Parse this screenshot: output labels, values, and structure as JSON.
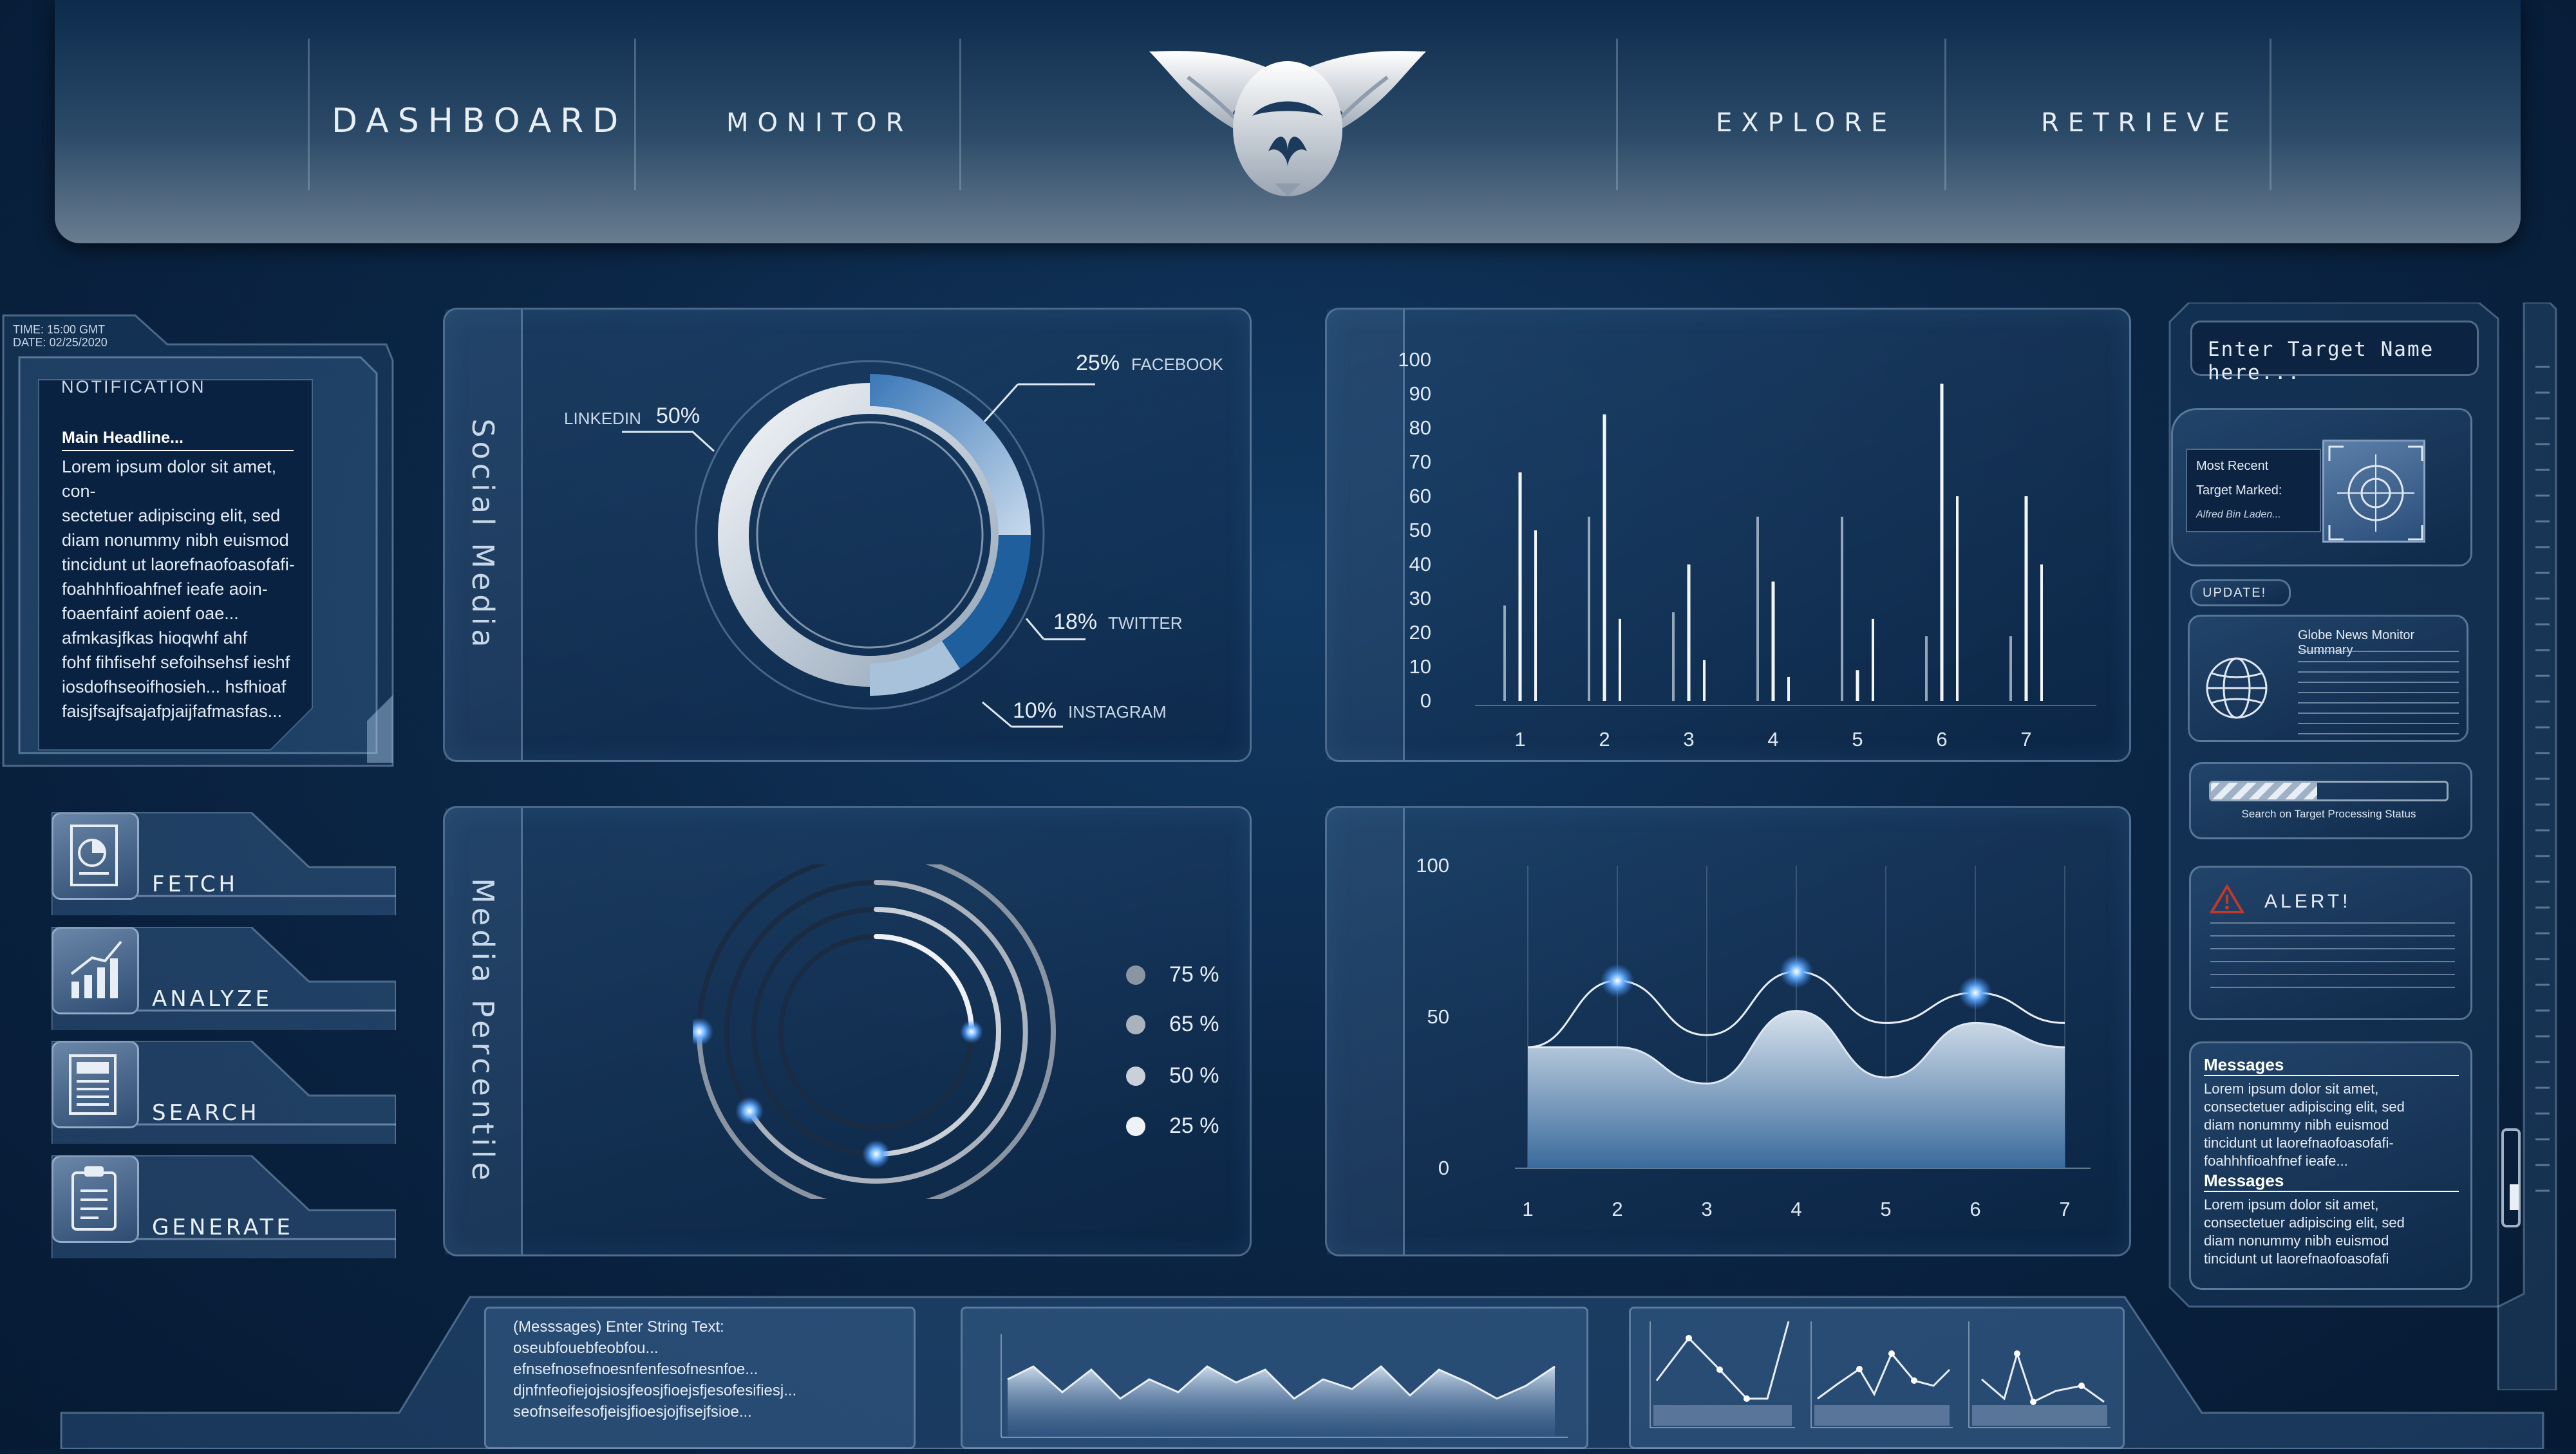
{
  "nav": {
    "items": [
      "DASHBOARD",
      "MONITOR",
      "EXPLORE",
      "RETRIEVE"
    ]
  },
  "sidebar": {
    "time": "TIME: 15:00 GMT",
    "date": "DATE: 02/25/2020",
    "notification_title": "NOTIFICATION",
    "headline": "Main Headline...",
    "body_lines": [
      "Lorem ipsum dolor sit amet, con-",
      "sectetuer adipiscing elit, sed",
      "diam nonummy nibh euismod",
      "tincidunt ut laorefnaofoasofafi-",
      "foahhhfioahfnef ieafe aoin-",
      "foaenfainf aoienf oae...",
      "afmkasjfkas hioqwhf ahf",
      " fohf fihfisehf sefoihsehsf ieshf",
      "iosdofhseoifhosieh... hsfhioaf",
      "faisjfsajfsajafpjaijfafmasfas..."
    ],
    "actions": [
      "FETCH",
      "ANALYZE",
      "SEARCH",
      "GENERATE"
    ],
    "action_icons": [
      "document-pie-icon",
      "bar-growth-icon",
      "newspaper-icon",
      "clipboard-icon"
    ]
  },
  "social_media": {
    "title": "Social Media",
    "segments": [
      {
        "pct": "25%",
        "name": "FACEBOOK"
      },
      {
        "pct": "18%",
        "name": "TWITTER"
      },
      {
        "pct": "10%",
        "name": "INSTAGRAM"
      },
      {
        "pct": "50%",
        "name": "LINKEDIN"
      }
    ]
  },
  "media_percentile": {
    "title": "Media Percentile",
    "legend": [
      "75 %",
      "65 %",
      "50 %",
      "25 %"
    ]
  },
  "chart_data": [
    {
      "type": "bar",
      "ylim": [
        0,
        100
      ],
      "yticks": [
        "0",
        "10",
        "20",
        "30",
        "40",
        "50",
        "60",
        "70",
        "80",
        "90",
        "100"
      ],
      "categories": [
        "1",
        "2",
        "3",
        "4",
        "5",
        "6",
        "7"
      ],
      "series": [
        {
          "values": [
            28,
            54,
            26,
            54,
            54,
            19,
            19
          ]
        },
        {
          "values": [
            67,
            84,
            40,
            35,
            9,
            93,
            60
          ]
        },
        {
          "values": [
            50,
            24,
            12,
            7,
            24,
            60,
            40
          ]
        }
      ]
    },
    {
      "type": "area",
      "ylim": [
        0,
        100
      ],
      "yticks": [
        "0",
        "50",
        "100"
      ],
      "x": [
        "1",
        "2",
        "3",
        "4",
        "5",
        "6",
        "7"
      ],
      "series": [
        {
          "values": [
            40,
            40,
            28,
            52,
            30,
            48,
            40
          ]
        },
        {
          "values": [
            40,
            62,
            44,
            65,
            48,
            58,
            48
          ]
        }
      ]
    }
  ],
  "right": {
    "search_placeholder": "Enter Target Name here...",
    "recent_line1": "Most Recent",
    "recent_line2": "Target Marked:",
    "recent_name": "Alfred Bin Laden...",
    "update_label": "UPDATE!",
    "globe_title": "Globe News Monitor Summary",
    "status_label": "Search on Target Processing Status",
    "progress": 0.45,
    "alert_label": "ALERT!",
    "messages": [
      {
        "title": "Messages",
        "lines": [
          "Lorem ipsum dolor sit amet,",
          "consectetuer adipiscing elit, sed",
          "diam nonummy nibh euismod",
          "tincidunt ut laorefnaofoasofafi-",
          "foahhhfioahfnef ieafe..."
        ]
      },
      {
        "title": "Messages",
        "lines": [
          "Lorem ipsum dolor sit amet,",
          "consectetuer adipiscing elit, sed",
          "diam nonummy nibh euismod",
          "tincidunt ut laorefnaofoasofafi"
        ]
      }
    ]
  },
  "bottom": {
    "string_lines": [
      "(Messsages) Enter String Text:",
      "oseubfouebfeobfou...",
      "efnsefnosefnoesnfenfesofnesnfoe...",
      "djnfnfeofiejojsiosjfeosjfioejsfjesofesifiesj...",
      "seofnseifesofjeisjfioesjojfisejfsioe..."
    ]
  },
  "colors": {
    "accent": "#5aa8ff",
    "panel_border": "#96b4d2",
    "bar_light": "#e8f0f8"
  }
}
